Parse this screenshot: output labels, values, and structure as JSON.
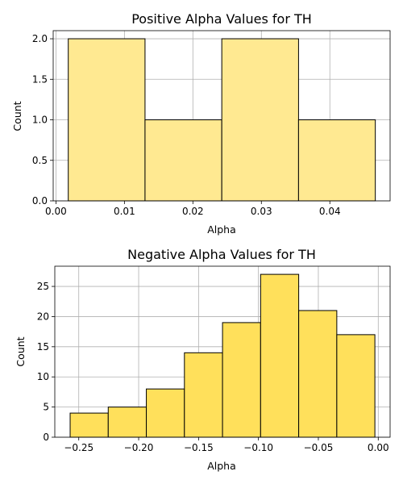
{
  "chart_data": [
    {
      "type": "bar",
      "subtype": "histogram",
      "title": "Positive Alpha Values for TH",
      "xlabel": "Alpha",
      "ylabel": "Count",
      "bin_edges": [
        0.0018,
        0.01301,
        0.02422,
        0.03543,
        0.04664
      ],
      "values": [
        2,
        1,
        2,
        1
      ],
      "xlim": [
        -0.0004,
        0.0488
      ],
      "ylim": [
        0,
        2.1
      ],
      "xticks": [
        0.0,
        0.01,
        0.02,
        0.03,
        0.04
      ],
      "xtick_labels": [
        "0.00",
        "0.01",
        "0.02",
        "0.03",
        "0.04"
      ],
      "yticks": [
        0.0,
        0.5,
        1.0,
        1.5,
        2.0
      ],
      "ytick_labels": [
        "0.0",
        "0.5",
        "1.0",
        "1.5",
        "2.0"
      ],
      "grid": true,
      "bar_color": "#ffe991",
      "edge_color": "#000000"
    },
    {
      "type": "bar",
      "subtype": "histogram",
      "title": "Negative Alpha Values for TH",
      "xlabel": "Alpha",
      "ylabel": "Count",
      "bin_edges": [
        -0.2572,
        -0.2254,
        -0.1936,
        -0.1618,
        -0.13,
        -0.0982,
        -0.0664,
        -0.0346,
        -0.0028
      ],
      "values": [
        4,
        5,
        8,
        14,
        19,
        27,
        21,
        17
      ],
      "xlim": [
        -0.27,
        0.0099
      ],
      "ylim": [
        0,
        28.35
      ],
      "xticks": [
        -0.25,
        -0.2,
        -0.15,
        -0.1,
        -0.05,
        0.0
      ],
      "xtick_labels": [
        "−0.25",
        "−0.20",
        "−0.15",
        "−0.10",
        "−0.05",
        "0.00"
      ],
      "yticks": [
        0,
        5,
        10,
        15,
        20,
        25
      ],
      "ytick_labels": [
        "0",
        "5",
        "10",
        "15",
        "20",
        "25"
      ],
      "grid": true,
      "bar_color": "#ffe05b",
      "edge_color": "#000000"
    }
  ]
}
